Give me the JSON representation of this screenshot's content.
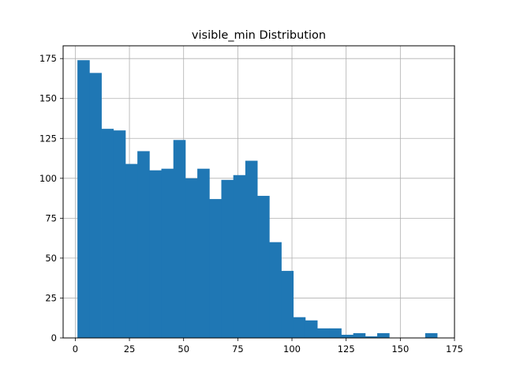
{
  "chart_data": {
    "type": "bar",
    "title": "visible_min Distribution",
    "xlabel": "",
    "ylabel": "",
    "xlim": [
      -5.6,
      175.0
    ],
    "ylim": [
      0,
      183
    ],
    "grid": true,
    "bar_color": "#1f77b4",
    "bin_edges": [
      1.0,
      6.53,
      12.07,
      17.6,
      23.13,
      28.67,
      34.2,
      39.73,
      45.27,
      50.8,
      56.33,
      61.87,
      67.4,
      72.93,
      78.47,
      84.0,
      89.53,
      95.07,
      100.6,
      106.13,
      111.67,
      117.2,
      122.73,
      128.27,
      133.8,
      139.33,
      144.87,
      150.4,
      155.93,
      161.47,
      167.0
    ],
    "counts": [
      174,
      166,
      131,
      130,
      109,
      117,
      105,
      106,
      124,
      100,
      106,
      87,
      99,
      102,
      111,
      89,
      60,
      42,
      13,
      11,
      6,
      6,
      2,
      3,
      1,
      3,
      0,
      0,
      0,
      3
    ],
    "x_ticks": [
      0,
      25,
      50,
      75,
      100,
      125,
      150,
      175
    ],
    "x_tick_labels": [
      "0",
      "25",
      "50",
      "75",
      "100",
      "125",
      "150",
      "175"
    ],
    "y_ticks": [
      0,
      25,
      50,
      75,
      100,
      125,
      150,
      175
    ],
    "y_tick_labels": [
      "0",
      "25",
      "50",
      "75",
      "100",
      "125",
      "150",
      "175"
    ]
  }
}
